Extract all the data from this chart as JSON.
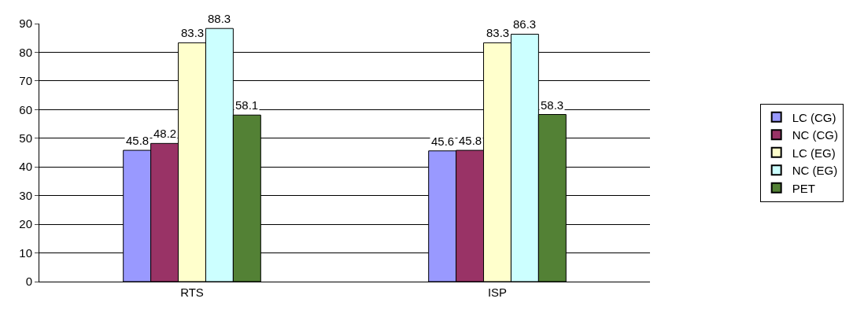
{
  "chart_data": {
    "type": "bar",
    "categories": [
      "RTS",
      "ISP"
    ],
    "series": [
      {
        "name": "LC (CG)",
        "color": "#9999ff",
        "values": [
          45.8,
          45.6
        ]
      },
      {
        "name": "NC (CG)",
        "color": "#993366",
        "values": [
          48.2,
          45.8
        ]
      },
      {
        "name": "LC (EG)",
        "color": "#ffffcc",
        "values": [
          83.3,
          83.3
        ]
      },
      {
        "name": "NC (EG)",
        "color": "#ccffff",
        "values": [
          88.3,
          86.3
        ]
      },
      {
        "name": "PET",
        "color": "#538135",
        "values": [
          58.1,
          58.3
        ]
      }
    ],
    "ylim": [
      0,
      90
    ],
    "yticks": [
      0,
      10,
      20,
      30,
      40,
      50,
      60,
      70,
      80,
      90
    ],
    "grid": "y",
    "legend": "right",
    "data_labels": true
  }
}
